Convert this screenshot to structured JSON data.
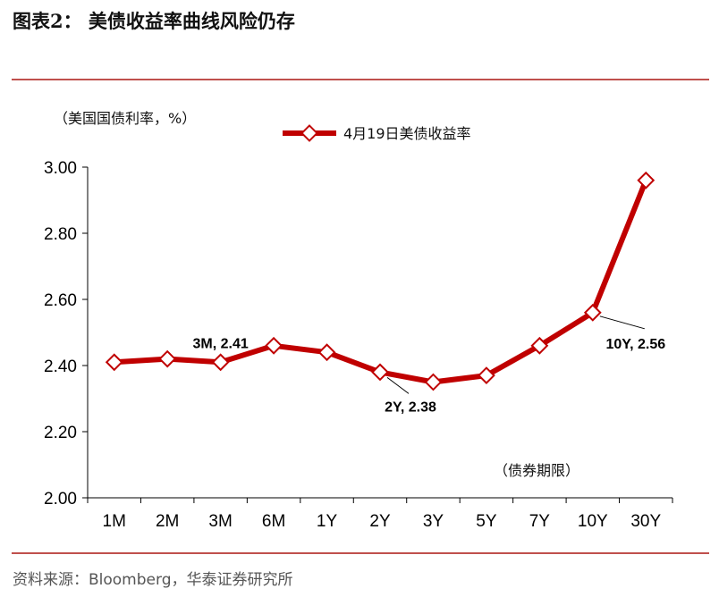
{
  "header": {
    "title": "图表2：  美债收益率曲线风险仍存"
  },
  "footer": {
    "source": "资料来源：Bloomberg，华泰证券研究所"
  },
  "chart_data": {
    "type": "line",
    "ylabel": "（美国国债利率，%）",
    "xlabel": "（债券期限）",
    "categories": [
      "1M",
      "2M",
      "3M",
      "6M",
      "1Y",
      "2Y",
      "3Y",
      "5Y",
      "7Y",
      "10Y",
      "30Y"
    ],
    "series": [
      {
        "name": "4月19日美债收益率",
        "values": [
          2.41,
          2.42,
          2.41,
          2.46,
          2.44,
          2.38,
          2.35,
          2.37,
          2.46,
          2.56,
          2.96
        ]
      }
    ],
    "ylim": [
      2.0,
      3.0
    ],
    "yticks": [
      "2.00",
      "2.20",
      "2.40",
      "2.60",
      "2.80",
      "3.00"
    ],
    "legend_position": "top-center",
    "grid": false,
    "annotations": [
      {
        "text": "3M, 2.41",
        "category": "3M"
      },
      {
        "text": "2Y, 2.38",
        "category": "2Y"
      },
      {
        "text": "10Y, 2.56",
        "category": "10Y"
      }
    ],
    "colors": {
      "line": "#c00000",
      "marker_fill": "#ffffff",
      "rule": "#c0504d"
    }
  }
}
